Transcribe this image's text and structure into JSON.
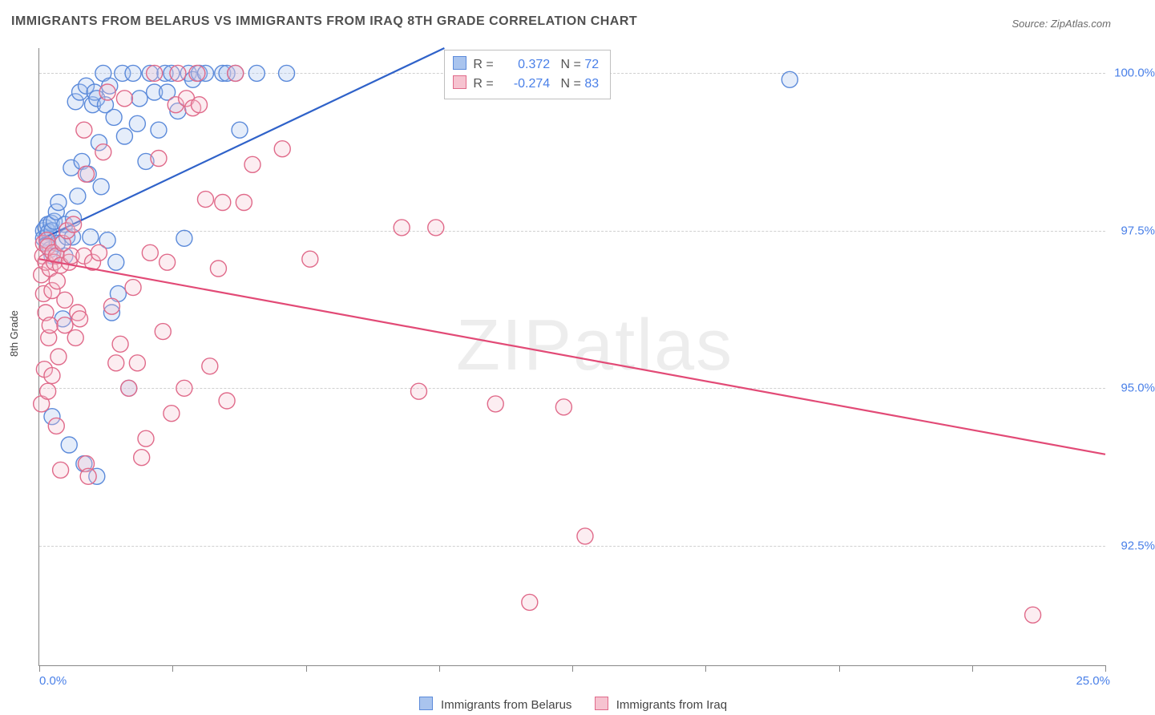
{
  "title": "IMMIGRANTS FROM BELARUS VS IMMIGRANTS FROM IRAQ 8TH GRADE CORRELATION CHART",
  "source_prefix": "Source: ",
  "source_name": "ZipAtlas.com",
  "ylabel": "8th Grade",
  "watermark": "ZIPatlas",
  "chart": {
    "type": "scatter",
    "xlim": [
      0,
      25
    ],
    "ylim": [
      90.6,
      100.4
    ],
    "x_end_labels": [
      "0.0%",
      "25.0%"
    ],
    "y_gridlines": [
      92.5,
      95.0,
      97.5,
      100.0
    ],
    "y_tick_labels": [
      "92.5%",
      "95.0%",
      "97.5%",
      "100.0%"
    ],
    "x_tick_positions": [
      0,
      3.125,
      6.25,
      9.375,
      12.5,
      15.625,
      18.75,
      21.875,
      25
    ],
    "background_color": "#ffffff",
    "grid_color": "#d0d0d0",
    "axis_color": "#888888",
    "tick_label_color": "#4a80e8",
    "marker_radius": 10,
    "marker_fill_opacity": 0.3,
    "marker_stroke_width": 1.4,
    "line_width": 2.2
  },
  "correlation_box": {
    "rows": [
      {
        "color_fill": "#a9c4ee",
        "color_stroke": "#5b8ada",
        "r": "0.372",
        "n": "72",
        "value_color": "#4a80e8"
      },
      {
        "color_fill": "#f6c3d0",
        "color_stroke": "#e06a8a",
        "r": "-0.274",
        "n": "83",
        "value_color": "#4a80e8"
      }
    ],
    "r_prefix": "R = ",
    "n_prefix": "N = "
  },
  "series": [
    {
      "name": "Immigrants from Belarus",
      "fill": "#a9c4ee",
      "stroke": "#5b8ada",
      "line_color": "#2f62c9",
      "regression": {
        "x1": 0,
        "y1": 97.35,
        "x2": 9.5,
        "y2": 100.4
      },
      "points": [
        [
          0.1,
          97.5
        ],
        [
          0.1,
          97.38
        ],
        [
          0.15,
          97.55
        ],
        [
          0.18,
          97.4
        ],
        [
          0.2,
          97.6
        ],
        [
          0.2,
          97.3
        ],
        [
          0.22,
          97.48
        ],
        [
          0.25,
          97.2
        ],
        [
          0.28,
          97.62
        ],
        [
          0.3,
          97.5
        ],
        [
          0.3,
          97.1
        ],
        [
          0.3,
          94.55
        ],
        [
          0.35,
          97.65
        ],
        [
          0.4,
          97.8
        ],
        [
          0.42,
          97.3
        ],
        [
          0.45,
          97.95
        ],
        [
          0.55,
          96.1
        ],
        [
          0.6,
          97.6
        ],
        [
          0.6,
          97.1
        ],
        [
          0.65,
          97.4
        ],
        [
          0.7,
          94.1
        ],
        [
          0.75,
          98.5
        ],
        [
          0.78,
          97.4
        ],
        [
          0.8,
          97.7
        ],
        [
          0.85,
          99.55
        ],
        [
          0.9,
          98.05
        ],
        [
          0.95,
          99.7
        ],
        [
          1.0,
          98.6
        ],
        [
          1.05,
          93.8
        ],
        [
          1.1,
          99.8
        ],
        [
          1.15,
          98.4
        ],
        [
          1.2,
          97.4
        ],
        [
          1.25,
          99.5
        ],
        [
          1.3,
          99.7
        ],
        [
          1.35,
          93.6
        ],
        [
          1.35,
          99.6
        ],
        [
          1.4,
          98.9
        ],
        [
          1.45,
          98.2
        ],
        [
          1.5,
          100.0
        ],
        [
          1.55,
          99.5
        ],
        [
          1.6,
          97.35
        ],
        [
          1.65,
          99.8
        ],
        [
          1.7,
          96.2
        ],
        [
          1.75,
          99.3
        ],
        [
          1.8,
          97.0
        ],
        [
          1.85,
          96.5
        ],
        [
          1.95,
          100.0
        ],
        [
          2.0,
          99.0
        ],
        [
          2.1,
          95.0
        ],
        [
          2.2,
          100.0
        ],
        [
          2.3,
          99.2
        ],
        [
          2.35,
          99.6
        ],
        [
          2.5,
          98.6
        ],
        [
          2.6,
          100.0
        ],
        [
          2.7,
          99.7
        ],
        [
          2.8,
          99.1
        ],
        [
          2.95,
          100.0
        ],
        [
          3.0,
          99.7
        ],
        [
          3.1,
          100.0
        ],
        [
          3.25,
          99.4
        ],
        [
          3.4,
          97.38
        ],
        [
          3.5,
          100.0
        ],
        [
          3.6,
          99.9
        ],
        [
          3.75,
          100.0
        ],
        [
          3.9,
          100.0
        ],
        [
          4.3,
          100.0
        ],
        [
          4.4,
          100.0
        ],
        [
          4.6,
          100.0
        ],
        [
          4.7,
          99.1
        ],
        [
          5.1,
          100.0
        ],
        [
          5.8,
          100.0
        ],
        [
          17.6,
          99.9
        ]
      ]
    },
    {
      "name": "Immigrants from Iraq",
      "fill": "#f6c3d0",
      "stroke": "#e06a8a",
      "line_color": "#e24a76",
      "regression": {
        "x1": 0,
        "y1": 97.05,
        "x2": 25,
        "y2": 93.95
      },
      "points": [
        [
          0.05,
          96.8
        ],
        [
          0.05,
          94.75
        ],
        [
          0.08,
          97.1
        ],
        [
          0.1,
          97.3
        ],
        [
          0.1,
          96.5
        ],
        [
          0.12,
          95.3
        ],
        [
          0.15,
          97.0
        ],
        [
          0.15,
          96.2
        ],
        [
          0.18,
          97.35
        ],
        [
          0.2,
          97.25
        ],
        [
          0.2,
          94.95
        ],
        [
          0.22,
          95.8
        ],
        [
          0.25,
          96.9
        ],
        [
          0.25,
          96.0
        ],
        [
          0.3,
          96.55
        ],
        [
          0.3,
          95.2
        ],
        [
          0.32,
          97.15
        ],
        [
          0.35,
          97.0
        ],
        [
          0.4,
          97.1
        ],
        [
          0.4,
          94.4
        ],
        [
          0.42,
          96.7
        ],
        [
          0.45,
          95.5
        ],
        [
          0.5,
          96.95
        ],
        [
          0.5,
          93.7
        ],
        [
          0.55,
          97.3
        ],
        [
          0.6,
          96.4
        ],
        [
          0.6,
          96.0
        ],
        [
          0.65,
          97.5
        ],
        [
          0.7,
          97.0
        ],
        [
          0.75,
          97.1
        ],
        [
          0.8,
          97.6
        ],
        [
          0.85,
          95.8
        ],
        [
          0.9,
          96.2
        ],
        [
          0.95,
          96.1
        ],
        [
          1.05,
          97.1
        ],
        [
          1.05,
          99.1
        ],
        [
          1.1,
          98.4
        ],
        [
          1.1,
          93.8
        ],
        [
          1.15,
          93.6
        ],
        [
          1.25,
          97.0
        ],
        [
          1.4,
          97.15
        ],
        [
          1.5,
          98.75
        ],
        [
          1.6,
          99.7
        ],
        [
          1.7,
          96.3
        ],
        [
          1.8,
          95.4
        ],
        [
          1.9,
          95.7
        ],
        [
          2.0,
          99.6
        ],
        [
          2.1,
          95.0
        ],
        [
          2.2,
          96.6
        ],
        [
          2.3,
          95.4
        ],
        [
          2.4,
          93.9
        ],
        [
          2.5,
          94.2
        ],
        [
          2.6,
          97.15
        ],
        [
          2.7,
          100.0
        ],
        [
          2.8,
          98.65
        ],
        [
          2.9,
          95.9
        ],
        [
          3.0,
          97.0
        ],
        [
          3.1,
          94.6
        ],
        [
          3.2,
          99.5
        ],
        [
          3.25,
          100.0
        ],
        [
          3.4,
          95.0
        ],
        [
          3.45,
          99.6
        ],
        [
          3.6,
          99.45
        ],
        [
          3.7,
          100.0
        ],
        [
          3.75,
          99.5
        ],
        [
          3.9,
          98.0
        ],
        [
          4.0,
          95.35
        ],
        [
          4.2,
          96.9
        ],
        [
          4.3,
          97.95
        ],
        [
          4.4,
          94.8
        ],
        [
          4.6,
          100.0
        ],
        [
          4.8,
          97.95
        ],
        [
          5.0,
          98.55
        ],
        [
          5.7,
          98.8
        ],
        [
          6.35,
          97.05
        ],
        [
          8.5,
          97.55
        ],
        [
          8.9,
          94.95
        ],
        [
          9.3,
          97.55
        ],
        [
          10.7,
          94.75
        ],
        [
          11.5,
          91.6
        ],
        [
          12.3,
          94.7
        ],
        [
          12.8,
          92.65
        ],
        [
          23.3,
          91.4
        ]
      ]
    }
  ],
  "bottom_legend": [
    {
      "label": "Immigrants from Belarus",
      "fill": "#a9c4ee",
      "stroke": "#5b8ada"
    },
    {
      "label": "Immigrants from Iraq",
      "fill": "#f6c3d0",
      "stroke": "#e06a8a"
    }
  ]
}
